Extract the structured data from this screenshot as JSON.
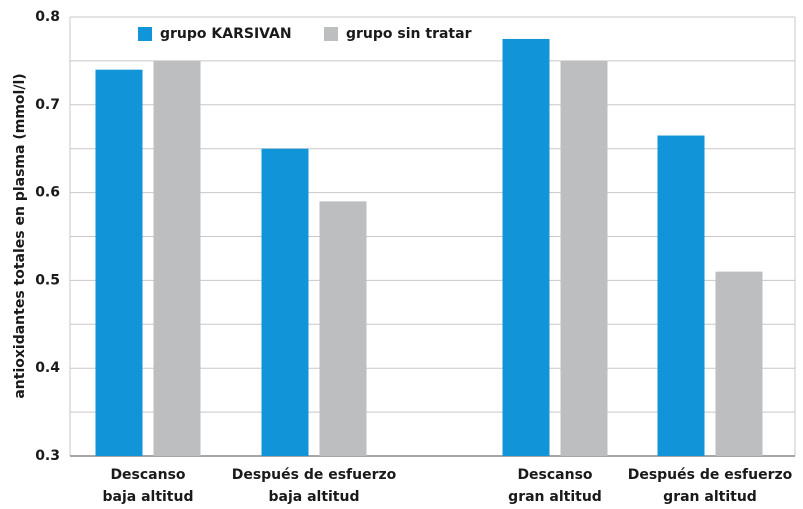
{
  "chart_data": {
    "type": "bar",
    "y_label": "antioxidantes totales en plasma (mmol/l)",
    "categories": [
      [
        "Descanso",
        "baja altitud"
      ],
      [
        "Después de esfuerzo",
        "baja altitud"
      ],
      [
        "Descanso",
        "gran altitud"
      ],
      [
        "Después de esfuerzo",
        "gran altitud"
      ]
    ],
    "series": [
      {
        "name": "grupo KARSIVAN",
        "color": "#1295d8",
        "values": [
          0.74,
          0.65,
          0.775,
          0.665
        ]
      },
      {
        "name": "grupo sin tratar",
        "color": "#bdbec0",
        "values": [
          0.75,
          0.59,
          0.75,
          0.51
        ]
      }
    ],
    "ylim": [
      0.3,
      0.8
    ],
    "yticks": [
      0.3,
      0.4,
      0.5,
      0.6,
      0.7,
      0.8
    ],
    "grid_lines": [
      0.35,
      0.45,
      0.55,
      0.65,
      0.75
    ],
    "grid": true,
    "legend": "top-left"
  }
}
